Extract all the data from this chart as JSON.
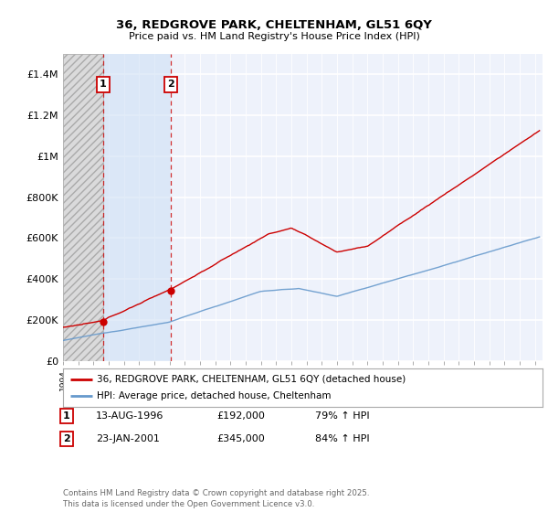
{
  "title": "36, REDGROVE PARK, CHELTENHAM, GL51 6QY",
  "subtitle": "Price paid vs. HM Land Registry's House Price Index (HPI)",
  "xlim_start": 1994.0,
  "xlim_end": 2025.5,
  "ylim_min": 0,
  "ylim_max": 1500000,
  "yticks": [
    0,
    200000,
    400000,
    600000,
    800000,
    1000000,
    1200000,
    1400000
  ],
  "ytick_labels": [
    "£0",
    "£200K",
    "£400K",
    "£600K",
    "£800K",
    "£1M",
    "£1.2M",
    "£1.4M"
  ],
  "transaction1_date": 1996.617,
  "transaction1_price": 192000,
  "transaction2_date": 2001.07,
  "transaction2_price": 345000,
  "red_line_color": "#cc0000",
  "blue_line_color": "#6699cc",
  "background_chart": "#eef2fb",
  "grid_color": "#ffffff",
  "legend1_text": "36, REDGROVE PARK, CHELTENHAM, GL51 6QY (detached house)",
  "legend2_text": "HPI: Average price, detached house, Cheltenham",
  "note1_date": "13-AUG-1996",
  "note1_price": "£192,000",
  "note1_hpi": "79% ↑ HPI",
  "note2_date": "23-JAN-2001",
  "note2_price": "£345,000",
  "note2_hpi": "84% ↑ HPI",
  "footer": "Contains HM Land Registry data © Crown copyright and database right 2025.\nThis data is licensed under the Open Government Licence v3.0."
}
